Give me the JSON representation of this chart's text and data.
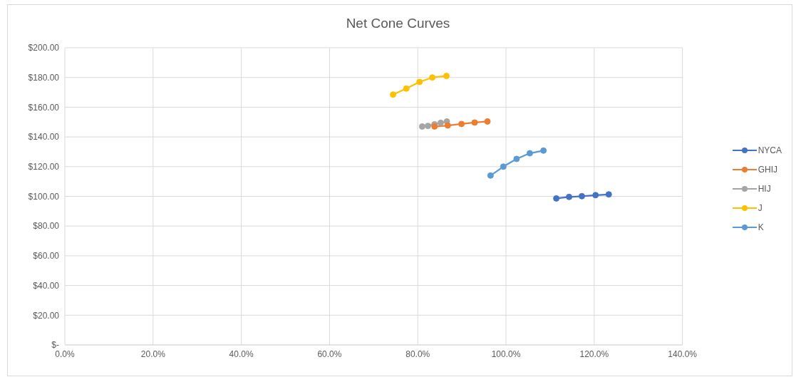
{
  "chart_data": {
    "type": "line",
    "title": "Net Cone Curves",
    "xlim": [
      0,
      140
    ],
    "xticks": [
      {
        "value": 0,
        "label": "0.0%"
      },
      {
        "value": 20,
        "label": "20.0%"
      },
      {
        "value": 40,
        "label": "40.0%"
      },
      {
        "value": 60,
        "label": "60.0%"
      },
      {
        "value": 80,
        "label": "80.0%"
      },
      {
        "value": 100,
        "label": "100.0%"
      },
      {
        "value": 120,
        "label": "120.0%"
      },
      {
        "value": 140,
        "label": "140.0%"
      }
    ],
    "ylim": [
      0,
      200
    ],
    "yticks": [
      {
        "value": 0,
        "label": "$-"
      },
      {
        "value": 20,
        "label": "$20.00"
      },
      {
        "value": 40,
        "label": "$40.00"
      },
      {
        "value": 60,
        "label": "$60.00"
      },
      {
        "value": 80,
        "label": "$80.00"
      },
      {
        "value": 100,
        "label": "$100.00"
      },
      {
        "value": 120,
        "label": "$120.00"
      },
      {
        "value": 140,
        "label": "$140.00"
      },
      {
        "value": 160,
        "label": "$160.00"
      },
      {
        "value": 180,
        "label": "$180.00"
      },
      {
        "value": 200,
        "label": "$200.00"
      }
    ],
    "grid": true,
    "legend": "right",
    "marker": "circle",
    "line_style": "solid",
    "series": [
      {
        "name": "NYCA",
        "color": "#4472c4",
        "x": [
          111.4,
          114.3,
          117.2,
          120.3,
          123.3
        ],
        "values": [
          98.6,
          99.6,
          100.1,
          100.8,
          101.3
        ]
      },
      {
        "name": "GHIJ",
        "color": "#ed7d31",
        "x": [
          83.8,
          86.8,
          89.9,
          92.9,
          95.8
        ],
        "values": [
          147,
          147.7,
          148.7,
          149.7,
          150.4
        ]
      },
      {
        "name": "HIJ",
        "color": "#a5a5a5",
        "x": [
          81,
          82.3,
          83.8,
          85.2,
          86.6
        ],
        "values": [
          147,
          147.4,
          148.5,
          149.5,
          150.4
        ]
      },
      {
        "name": "J",
        "color": "#ffc000",
        "x": [
          74.4,
          77.4,
          80.4,
          83.3,
          86.5
        ],
        "values": [
          168.5,
          172.5,
          177,
          180,
          181
        ]
      },
      {
        "name": "K",
        "color": "#5b9bd5",
        "x": [
          96.5,
          99.4,
          102.4,
          105.4,
          108.5
        ],
        "values": [
          114,
          120,
          125.2,
          129,
          130.8
        ]
      }
    ]
  }
}
